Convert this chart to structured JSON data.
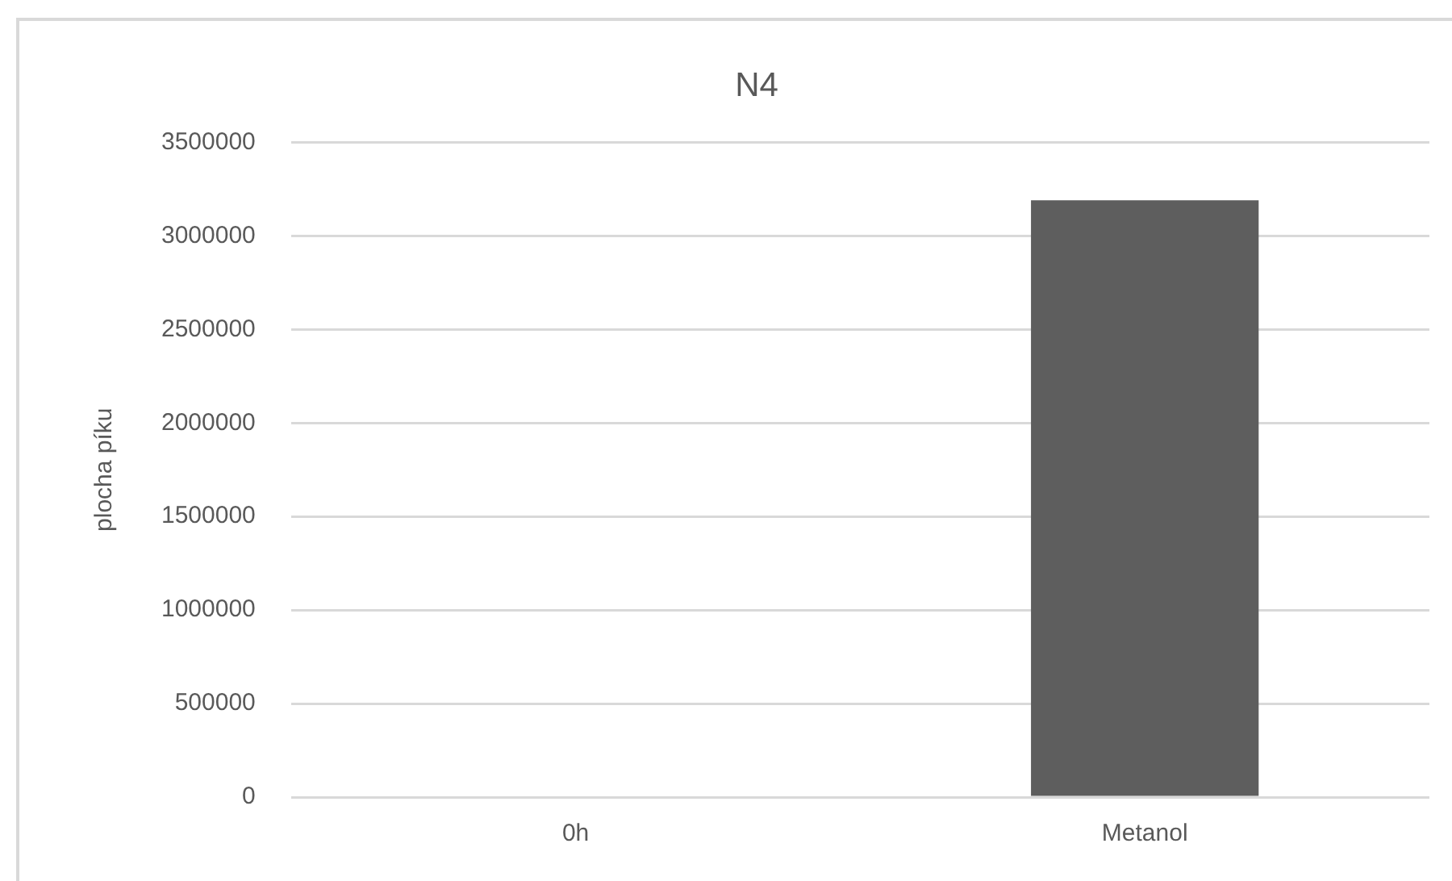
{
  "chart_data": {
    "type": "bar",
    "title": "N4",
    "ylabel": "plocha píku",
    "categories": [
      "0h",
      "Metanol"
    ],
    "values": [
      0,
      3190000
    ],
    "color": "#5e5e5e",
    "ylim": [
      0,
      3500000
    ],
    "yticks": [
      0,
      500000,
      1000000,
      1500000,
      2000000,
      2500000,
      3000000,
      3500000
    ],
    "grid": "y",
    "legend": false
  }
}
